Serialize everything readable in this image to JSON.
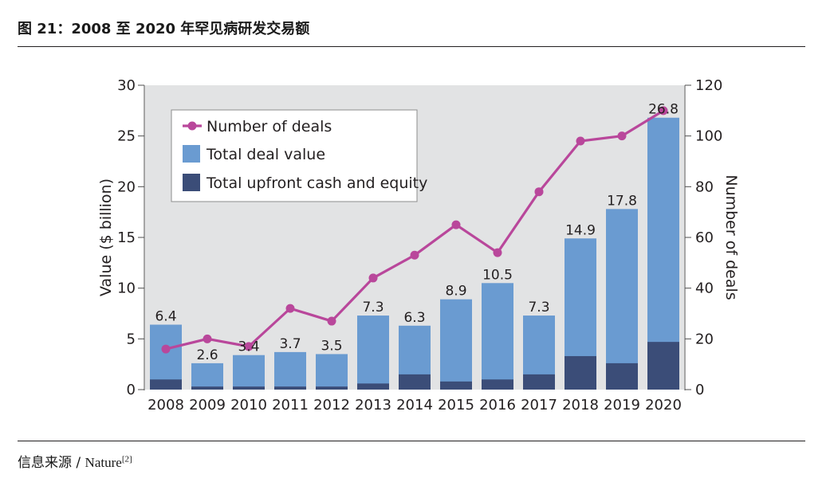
{
  "figure": {
    "title": "图 21：2008 至 2020 年罕见病研发交易额",
    "source_label": "信息来源 / ",
    "source_name": "Nature",
    "source_ref": "[2]"
  },
  "colors": {
    "plot_background": "#e2e3e4",
    "total_value_bar": "#6a9bd1",
    "upfront_bar": "#3b4d78",
    "deals_line": "#b9479b",
    "axis": "#4d4d4d"
  },
  "chart_data": {
    "type": "bar",
    "categories": [
      "2008",
      "2009",
      "2010",
      "2011",
      "2012",
      "2013",
      "2014",
      "2015",
      "2016",
      "2017",
      "2018",
      "2019",
      "2020"
    ],
    "series": [
      {
        "name": "Total deal value",
        "axis": "left",
        "kind": "bar",
        "values": [
          6.4,
          2.6,
          3.4,
          3.7,
          3.5,
          7.3,
          6.3,
          8.9,
          10.5,
          7.3,
          14.9,
          17.8,
          26.8
        ]
      },
      {
        "name": "Total upfront cash and equity",
        "axis": "left",
        "kind": "bar",
        "values": [
          1.0,
          0.3,
          0.3,
          0.3,
          0.3,
          0.6,
          1.5,
          0.8,
          1.0,
          1.5,
          3.3,
          2.6,
          4.7
        ]
      },
      {
        "name": "Number of deals",
        "axis": "right",
        "kind": "line",
        "values": [
          16,
          20,
          17,
          32,
          27,
          44,
          53,
          65,
          54,
          78,
          98,
          100,
          110
        ]
      }
    ],
    "data_labels": [
      "6.4",
      "2.6",
      "3.4",
      "3.7",
      "3.5",
      "7.3",
      "6.3",
      "8.9",
      "10.5",
      "7.3",
      "14.9",
      "17.8",
      "26.8"
    ],
    "ylabel": "Value ($ billion)",
    "y2label": "Number of deals",
    "ylim": [
      0,
      30
    ],
    "y2lim": [
      0,
      120
    ],
    "yticks": [
      "0",
      "5",
      "10",
      "15",
      "20",
      "25",
      "30"
    ],
    "y2ticks": [
      "0",
      "20",
      "40",
      "60",
      "80",
      "100",
      "120"
    ],
    "grid": false,
    "legend_position": "top-left",
    "legend": [
      "Number of deals",
      "Total deal value",
      "Total upfront cash and equity"
    ]
  }
}
